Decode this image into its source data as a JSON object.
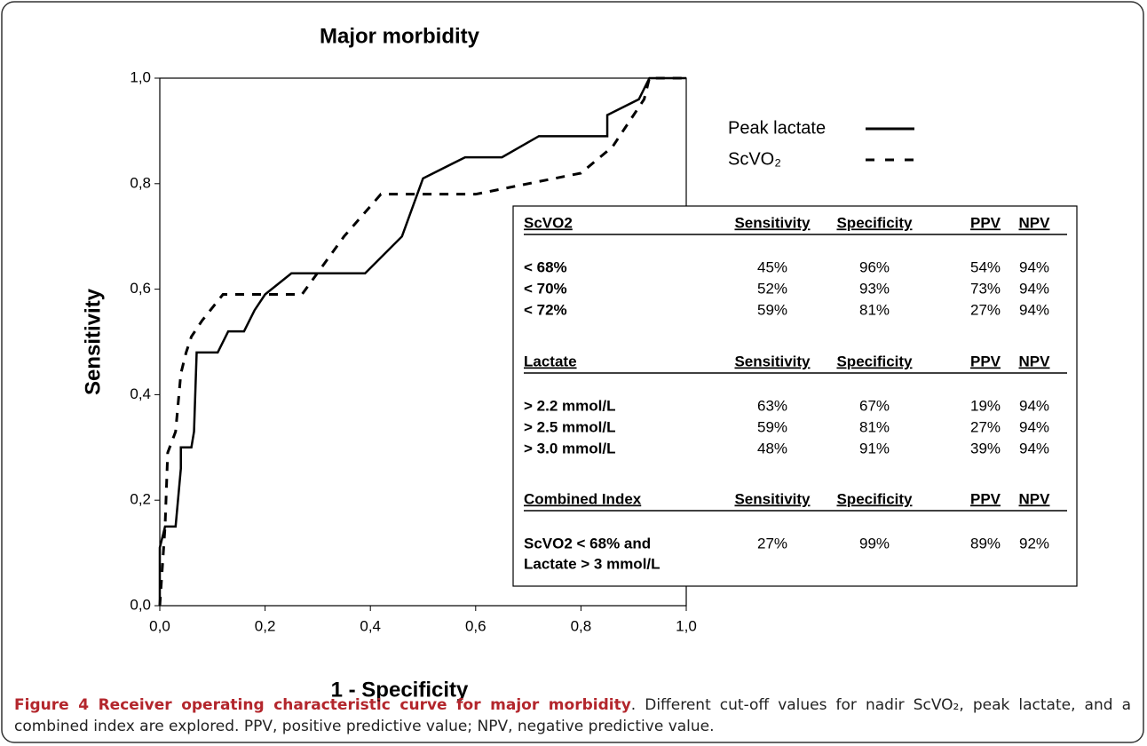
{
  "chart_data": {
    "type": "line",
    "title": "Major morbidity",
    "x_label": "1 - Specificity",
    "y_label": "Sensitivity",
    "xlim": [
      0,
      1
    ],
    "ylim": [
      0,
      1
    ],
    "xticks": [
      {
        "value": 0,
        "label": "0,0"
      },
      {
        "value": 0.2,
        "label": "0,2"
      },
      {
        "value": 0.4,
        "label": "0,4"
      },
      {
        "value": 0.6,
        "label": "0,6"
      },
      {
        "value": 0.8,
        "label": "0,8"
      },
      {
        "value": 1,
        "label": "1,0"
      }
    ],
    "yticks": [
      {
        "value": 0,
        "label": "0,0"
      },
      {
        "value": 0.2,
        "label": "0,2"
      },
      {
        "value": 0.4,
        "label": "0,4"
      },
      {
        "value": 0.6,
        "label": "0,6"
      },
      {
        "value": 0.8,
        "label": "0,8"
      },
      {
        "value": 1,
        "label": "1,0"
      }
    ],
    "legend": "right",
    "series": [
      {
        "name": "Peak lactate",
        "color": "#000000",
        "line_style": "solid",
        "x": [
          0,
          0,
          0.01,
          0.03,
          0.04,
          0.04,
          0.06,
          0.065,
          0.07,
          0.11,
          0.13,
          0.16,
          0.18,
          0.2,
          0.25,
          0.39,
          0.46,
          0.5,
          0.58,
          0.65,
          0.72,
          0.85,
          0.85,
          0.91,
          0.93,
          1.0
        ],
        "values": [
          0,
          0.11,
          0.15,
          0.15,
          0.26,
          0.3,
          0.3,
          0.33,
          0.48,
          0.48,
          0.52,
          0.52,
          0.56,
          0.59,
          0.63,
          0.63,
          0.7,
          0.81,
          0.85,
          0.85,
          0.89,
          0.89,
          0.93,
          0.96,
          1.0,
          1.0
        ]
      },
      {
        "name": "ScVO₂",
        "color": "#000000",
        "line_style": "dashed",
        "x": [
          0,
          0.01,
          0.015,
          0.03,
          0.04,
          0.05,
          0.06,
          0.08,
          0.12,
          0.2,
          0.27,
          0.35,
          0.42,
          0.5,
          0.6,
          0.65,
          0.8,
          0.86,
          0.92,
          0.93,
          1.0
        ],
        "values": [
          0,
          0.15,
          0.29,
          0.33,
          0.44,
          0.48,
          0.51,
          0.54,
          0.59,
          0.59,
          0.59,
          0.7,
          0.78,
          0.78,
          0.78,
          0.79,
          0.82,
          0.87,
          0.96,
          1.0,
          1.0
        ]
      }
    ]
  },
  "table": {
    "sections": [
      {
        "header": [
          "ScVO2",
          "Sensitivity",
          "Specificity",
          "PPV",
          "NPV"
        ],
        "rows": [
          [
            [
              "< 68%"
            ],
            "45%",
            "96%",
            "54%",
            "94%"
          ],
          [
            [
              "< 70%"
            ],
            "52%",
            "93%",
            "73%",
            "94%"
          ],
          [
            [
              "< 72%"
            ],
            "59%",
            "81%",
            "27%",
            "94%"
          ]
        ]
      },
      {
        "header": [
          "Lactate",
          "Sensitivity",
          "Specificity",
          "PPV",
          "NPV"
        ],
        "rows": [
          [
            [
              "> 2.2 mmol/L"
            ],
            "63%",
            "67%",
            "19%",
            "94%"
          ],
          [
            [
              "> 2.5 mmol/L"
            ],
            "59%",
            "81%",
            "27%",
            "94%"
          ],
          [
            [
              "> 3.0 mmol/L"
            ],
            "48%",
            "91%",
            "39%",
            "94%"
          ]
        ]
      },
      {
        "header": [
          "Combined Index",
          "Sensitivity",
          "Specificity",
          "PPV",
          "NPV"
        ],
        "rows": [
          [
            [
              "ScVO2 < 68% and",
              "Lactate > 3 mmol/L"
            ],
            "27%",
            "99%",
            "89%",
            "92%"
          ]
        ]
      }
    ]
  },
  "caption": {
    "title": "Figure 4 Receiver operating characteristic curve for major morbidity",
    "text": ". Different cut-off values for nadir ScVO₂, peak lactate, and a combined index are explored. PPV, positive predictive value; NPV, negative predictive value."
  }
}
